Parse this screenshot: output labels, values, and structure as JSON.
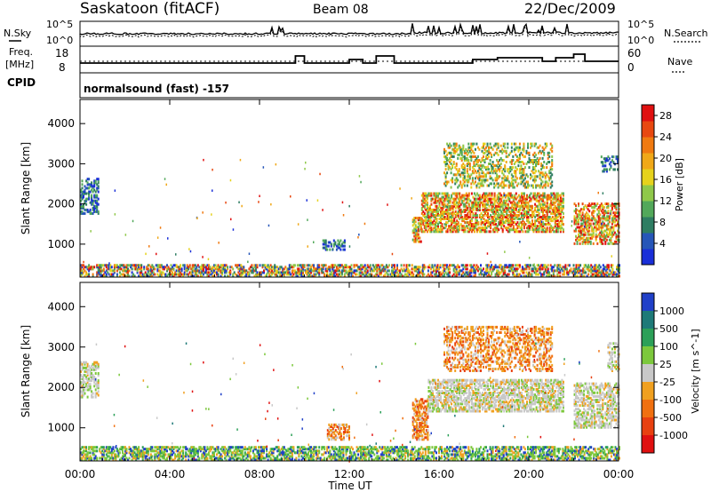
{
  "header": {
    "station": "Saskatoon (fitACF)",
    "beam": "Beam 08",
    "date": "22/Dec/2009"
  },
  "noise_panel": {
    "left_label": "N.Sky",
    "left_ticks": [
      "10^5",
      "10^0"
    ],
    "right_label": "N.Search",
    "right_ticks": [
      "10^5",
      "10^0"
    ]
  },
  "freq_panel": {
    "left_label_1": "Freq.",
    "left_label_2": "[MHz]",
    "left_ticks": [
      "18",
      "8"
    ],
    "right_label": "Nave",
    "right_ticks": [
      "60",
      "0"
    ],
    "cpid_label": "CPID",
    "cpid_text": "normalsound (fast) -157"
  },
  "chart_data": [
    {
      "type": "heatmap",
      "name": "power",
      "ylabel": "Slant Range [km]",
      "xlabel": "",
      "x_ticks": [
        "00:00",
        "04:00",
        "08:00",
        "12:00",
        "16:00",
        "20:00",
        "00:00"
      ],
      "x_range_hours": [
        0,
        24
      ],
      "y_ticks": [
        1000,
        2000,
        3000,
        4000
      ],
      "y_range_km": [
        180,
        4600
      ],
      "colorbar": {
        "label": "Power [dB]",
        "ticks": [
          "4",
          "8",
          "12",
          "16",
          "20",
          "24",
          "28"
        ],
        "range": [
          0,
          30
        ],
        "colors": [
          "#1a2fd8",
          "#2656b8",
          "#2e7d62",
          "#52a85a",
          "#8fc84a",
          "#e6d21c",
          "#f0a818",
          "#f07a10",
          "#e84810",
          "#e01010"
        ]
      },
      "regions": [
        {
          "t0": 0.0,
          "t1": 24.0,
          "r0": 190,
          "r1": 480,
          "palette": "mixed",
          "density": 0.55
        },
        {
          "t0": 0.0,
          "t1": 0.8,
          "r0": 1750,
          "r1": 2650,
          "palette": "low",
          "density": 0.45
        },
        {
          "t0": 10.8,
          "t1": 11.8,
          "r0": 850,
          "r1": 1100,
          "palette": "low",
          "density": 0.5
        },
        {
          "t0": 14.8,
          "t1": 15.2,
          "r0": 1050,
          "r1": 1650,
          "palette": "high",
          "density": 0.6
        },
        {
          "t0": 15.2,
          "t1": 21.5,
          "r0": 1300,
          "r1": 2250,
          "palette": "high",
          "density": 0.6
        },
        {
          "t0": 16.2,
          "t1": 21.0,
          "r0": 2400,
          "r1": 3500,
          "palette": "mid",
          "density": 0.35
        },
        {
          "t0": 22.0,
          "t1": 24.0,
          "r0": 1000,
          "r1": 2000,
          "palette": "high",
          "density": 0.5
        },
        {
          "t0": 23.2,
          "t1": 24.0,
          "r0": 2800,
          "r1": 3200,
          "palette": "low",
          "density": 0.3
        }
      ]
    },
    {
      "type": "heatmap",
      "name": "velocity",
      "ylabel": "Slant Range [km]",
      "xlabel": "Time UT",
      "x_ticks": [
        "00:00",
        "04:00",
        "08:00",
        "12:00",
        "16:00",
        "20:00",
        "00:00"
      ],
      "x_range_hours": [
        0,
        24
      ],
      "y_ticks": [
        1000,
        2000,
        3000,
        4000
      ],
      "y_range_km": [
        180,
        4600
      ],
      "colorbar": {
        "label": "Velocity [m s^-1]",
        "ticks": [
          "1000",
          "500",
          "100",
          "25",
          "-25",
          "-100",
          "-500",
          "-1000"
        ],
        "colors": [
          "#2040c8",
          "#1e7a78",
          "#2ca058",
          "#7cc83c",
          "#c8c8c8",
          "#f0a020",
          "#f07010",
          "#e84010",
          "#e01010"
        ]
      },
      "regions": [
        {
          "t0": 0.0,
          "t1": 24.0,
          "r0": 190,
          "r1": 520,
          "palette": "vel_green",
          "density": 0.55
        },
        {
          "t0": 0.0,
          "t1": 0.8,
          "r0": 1750,
          "r1": 2650,
          "palette": "vel_gray",
          "density": 0.5
        },
        {
          "t0": 11.0,
          "t1": 12.0,
          "r0": 700,
          "r1": 1100,
          "palette": "vel_orange",
          "density": 0.5
        },
        {
          "t0": 14.8,
          "t1": 15.5,
          "r0": 700,
          "r1": 1700,
          "palette": "vel_orange",
          "density": 0.55
        },
        {
          "t0": 15.5,
          "t1": 21.5,
          "r0": 1400,
          "r1": 2200,
          "palette": "vel_gray",
          "density": 0.6
        },
        {
          "t0": 16.2,
          "t1": 21.0,
          "r0": 2400,
          "r1": 3500,
          "palette": "vel_orange",
          "density": 0.4
        },
        {
          "t0": 22.0,
          "t1": 24.0,
          "r0": 1000,
          "r1": 2100,
          "palette": "vel_gray",
          "density": 0.5
        },
        {
          "t0": 23.5,
          "t1": 24.0,
          "r0": 2400,
          "r1": 3100,
          "palette": "vel_gray",
          "density": 0.4
        }
      ]
    }
  ]
}
